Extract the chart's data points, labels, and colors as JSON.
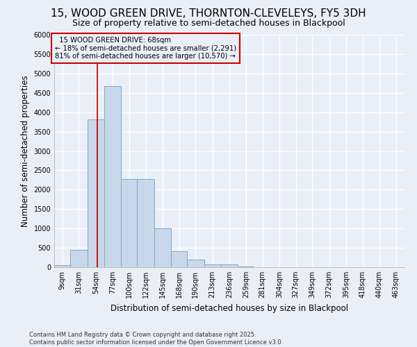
{
  "title_line1": "15, WOOD GREEN DRIVE, THORNTON-CLEVELEYS, FY5 3DH",
  "title_line2": "Size of property relative to semi-detached houses in Blackpool",
  "xlabel": "Distribution of semi-detached houses by size in Blackpool",
  "ylabel": "Number of semi-detached properties",
  "bin_labels": [
    "9sqm",
    "31sqm",
    "54sqm",
    "77sqm",
    "100sqm",
    "122sqm",
    "145sqm",
    "168sqm",
    "190sqm",
    "213sqm",
    "236sqm",
    "259sqm",
    "281sqm",
    "304sqm",
    "327sqm",
    "349sqm",
    "372sqm",
    "395sqm",
    "418sqm",
    "440sqm",
    "463sqm"
  ],
  "bin_edges": [
    9,
    31,
    54,
    77,
    100,
    122,
    145,
    168,
    190,
    213,
    236,
    259,
    281,
    304,
    327,
    349,
    372,
    395,
    418,
    440,
    463,
    486
  ],
  "bar_heights": [
    50,
    450,
    3820,
    4670,
    2280,
    2280,
    1000,
    420,
    200,
    80,
    80,
    20,
    5,
    5,
    5,
    5,
    5,
    2,
    2,
    2,
    2
  ],
  "bar_color": "#c8d8ea",
  "bar_edge_color": "#7aaac8",
  "marker_value": 68,
  "marker_label": "15 WOOD GREEN DRIVE: 68sqm",
  "pct_smaller": "18%",
  "n_smaller": "2,291",
  "pct_larger": "81%",
  "n_larger": "10,570",
  "annotation_box_color": "#cc0000",
  "ylim": [
    0,
    6000
  ],
  "yticks": [
    0,
    500,
    1000,
    1500,
    2000,
    2500,
    3000,
    3500,
    4000,
    4500,
    5000,
    5500,
    6000
  ],
  "background_color": "#eaeff7",
  "footer": "Contains HM Land Registry data © Crown copyright and database right 2025.\nContains public sector information licensed under the Open Government Licence v3.0.",
  "grid_color": "#ffffff",
  "title_fontsize": 11,
  "subtitle_fontsize": 9,
  "axis_label_fontsize": 8.5,
  "tick_fontsize": 7
}
